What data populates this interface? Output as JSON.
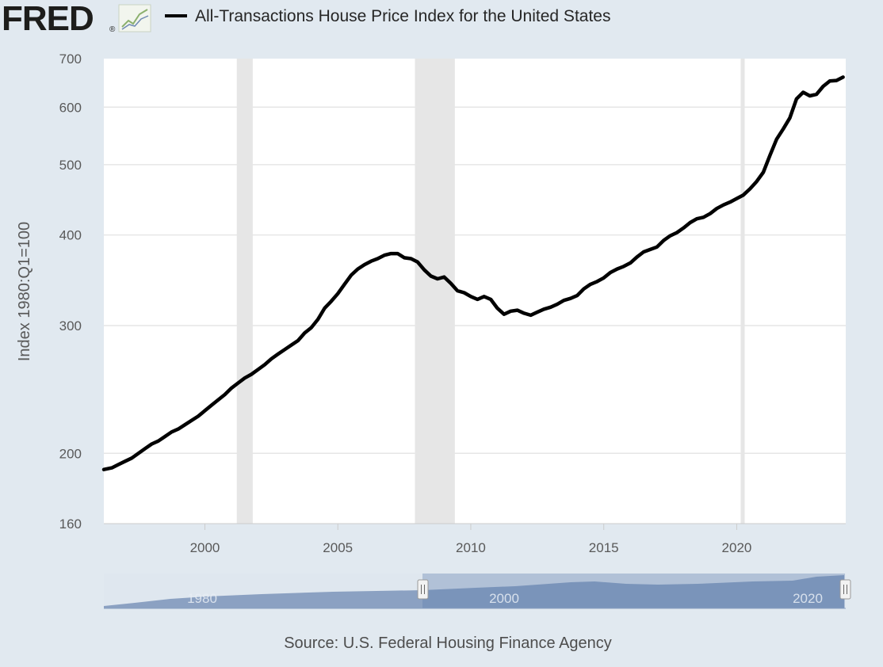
{
  "logo": {
    "text": "FRED",
    "mark": "®",
    "icon": "line-chart-icon"
  },
  "legend": {
    "label": "All-Transactions House Price Index for the United States",
    "swatch_color": "#000000"
  },
  "source": "Source: U.S. Federal Housing Finance Agency",
  "navigator": {
    "labels": [
      "1980",
      "2000",
      "2020"
    ]
  },
  "colors": {
    "background": "#e1e9f0",
    "plot": "#ffffff",
    "grid": "#e6e6e6",
    "recession": "#e6e6e6",
    "line": "#000000",
    "navigator_fill": "#6f8ab3"
  },
  "chart_data": {
    "type": "line",
    "title": "",
    "xlabel": "",
    "ylabel": "Index 1980:Q1=100",
    "yscale": "log",
    "ylim": [
      160,
      700
    ],
    "xlim": [
      1996.2,
      2024.1
    ],
    "y_ticks": [
      160,
      200,
      300,
      400,
      500,
      600,
      700
    ],
    "x_ticks": [
      2000,
      2005,
      2010,
      2015,
      2020
    ],
    "grid": true,
    "recessions": [
      [
        2001.2,
        2001.8
      ],
      [
        2007.9,
        2009.4
      ],
      [
        2020.15,
        2020.3
      ]
    ],
    "series": [
      {
        "name": "All-Transactions House Price Index for the United States",
        "x": [
          1996.2,
          1996.5,
          1996.75,
          1997.0,
          1997.25,
          1997.5,
          1997.75,
          1998.0,
          1998.25,
          1998.5,
          1998.75,
          1999.0,
          1999.25,
          1999.5,
          1999.75,
          2000.0,
          2000.25,
          2000.5,
          2000.75,
          2001.0,
          2001.25,
          2001.5,
          2001.75,
          2002.0,
          2002.25,
          2002.5,
          2002.75,
          2003.0,
          2003.25,
          2003.5,
          2003.75,
          2004.0,
          2004.25,
          2004.5,
          2004.75,
          2005.0,
          2005.25,
          2005.5,
          2005.75,
          2006.0,
          2006.25,
          2006.5,
          2006.75,
          2007.0,
          2007.25,
          2007.5,
          2007.75,
          2008.0,
          2008.25,
          2008.5,
          2008.75,
          2009.0,
          2009.25,
          2009.5,
          2009.75,
          2010.0,
          2010.25,
          2010.5,
          2010.75,
          2011.0,
          2011.25,
          2011.5,
          2011.75,
          2012.0,
          2012.25,
          2012.5,
          2012.75,
          2013.0,
          2013.25,
          2013.5,
          2013.75,
          2014.0,
          2014.25,
          2014.5,
          2014.75,
          2015.0,
          2015.25,
          2015.5,
          2015.75,
          2016.0,
          2016.25,
          2016.5,
          2016.75,
          2017.0,
          2017.25,
          2017.5,
          2017.75,
          2018.0,
          2018.25,
          2018.5,
          2018.75,
          2019.0,
          2019.25,
          2019.5,
          2019.75,
          2020.0,
          2020.25,
          2020.5,
          2020.75,
          2021.0,
          2021.25,
          2021.5,
          2021.75,
          2022.0,
          2022.25,
          2022.5,
          2022.75,
          2023.0,
          2023.25,
          2023.5,
          2023.75,
          2024.0
        ],
        "values": [
          190,
          191,
          193,
          195,
          197,
          200,
          203,
          206,
          208,
          211,
          214,
          216,
          219,
          222,
          225,
          229,
          233,
          237,
          241,
          246,
          250,
          254,
          257,
          261,
          265,
          270,
          274,
          278,
          282,
          286,
          293,
          298,
          306,
          317,
          324,
          332,
          342,
          352,
          359,
          364,
          368,
          371,
          375,
          377,
          377,
          372,
          371,
          367,
          358,
          351,
          348,
          350,
          343,
          335,
          333,
          329,
          326,
          329,
          326,
          317,
          311,
          314,
          315,
          312,
          310,
          313,
          316,
          318,
          321,
          325,
          327,
          330,
          337,
          342,
          345,
          349,
          355,
          359,
          362,
          366,
          373,
          379,
          382,
          385,
          393,
          399,
          403,
          409,
          416,
          421,
          423,
          428,
          435,
          440,
          444,
          449,
          454,
          463,
          474,
          488,
          515,
          542,
          560,
          580,
          616,
          629,
          622,
          625,
          641,
          652,
          653,
          660
        ]
      }
    ]
  }
}
